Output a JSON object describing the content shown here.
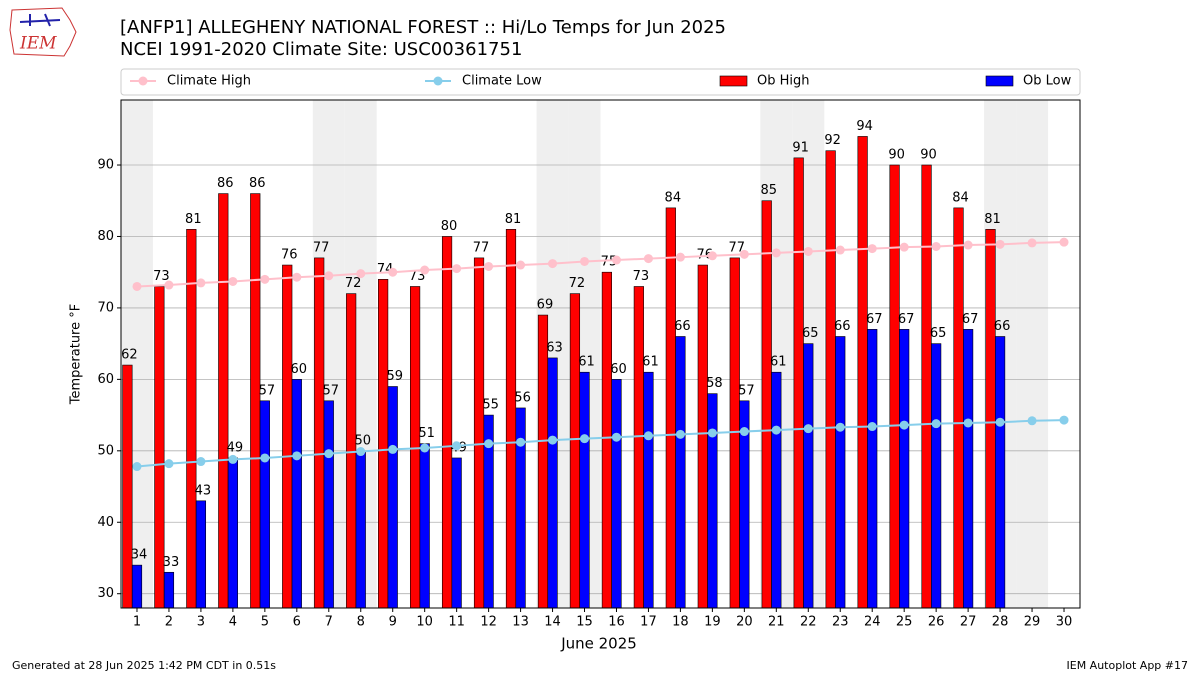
{
  "chart_data": {
    "type": "bar",
    "title": "[ANFP1] ALLEGHENY NATIONAL FOREST :: Hi/Lo Temps for Jun 2025",
    "subtitle": "NCEI 1991-2020 Climate Site: USC00361751",
    "logo_text": "IEM",
    "x_label": "June 2025",
    "y_label": "Temperature $^\\circ$F",
    "y_label_printed": "Temperature °F",
    "footer_left": "Generated at 28 Jun 2025 1:42 PM CDT in 0.51s",
    "footer_right": "IEM Autoplot App #17",
    "x": [
      1,
      2,
      3,
      4,
      5,
      6,
      7,
      8,
      9,
      10,
      11,
      12,
      13,
      14,
      15,
      16,
      17,
      18,
      19,
      20,
      21,
      22,
      23,
      24,
      25,
      26,
      27,
      28,
      29,
      30
    ],
    "xlim": [
      0.5,
      30.5
    ],
    "xticks": [
      1,
      2,
      3,
      4,
      5,
      6,
      7,
      8,
      9,
      10,
      11,
      12,
      13,
      14,
      15,
      16,
      17,
      18,
      19,
      20,
      21,
      22,
      23,
      24,
      25,
      26,
      27,
      28,
      29,
      30
    ],
    "ylim": [
      28,
      99.1
    ],
    "yticks": [
      30,
      40,
      50,
      60,
      70,
      80,
      90
    ],
    "grid": true,
    "shaded_x": [
      1,
      7,
      8,
      14,
      15,
      21,
      22,
      28,
      29
    ],
    "shade_color": "#efefef",
    "series": [
      {
        "name": "Climate High",
        "type": "line",
        "color": "#ffc0cb",
        "values": [
          73.0,
          73.2,
          73.5,
          73.7,
          74.0,
          74.3,
          74.5,
          74.8,
          75.0,
          75.3,
          75.5,
          75.8,
          76.0,
          76.2,
          76.5,
          76.7,
          76.9,
          77.1,
          77.3,
          77.5,
          77.7,
          77.9,
          78.1,
          78.3,
          78.5,
          78.6,
          78.8,
          78.9,
          79.1,
          79.2
        ]
      },
      {
        "name": "Climate Low",
        "type": "line",
        "color": "#87ceeb",
        "values": [
          47.8,
          48.2,
          48.5,
          48.8,
          49.0,
          49.3,
          49.6,
          49.9,
          50.2,
          50.4,
          50.7,
          51.0,
          51.2,
          51.5,
          51.7,
          51.9,
          52.1,
          52.3,
          52.5,
          52.7,
          52.9,
          53.1,
          53.3,
          53.4,
          53.6,
          53.8,
          53.9,
          54.0,
          54.2,
          54.3
        ]
      },
      {
        "name": "Ob High",
        "type": "bar",
        "color": "#ff0000",
        "offset": [
          -0.45,
          -0.15
        ],
        "values": [
          62,
          73,
          81,
          86,
          86,
          76,
          77,
          72,
          74,
          73,
          80,
          77,
          81,
          69,
          72,
          75,
          73,
          84,
          76,
          77,
          85,
          91,
          92,
          94,
          90,
          90,
          84,
          81,
          null,
          null
        ]
      },
      {
        "name": "Ob Low",
        "type": "bar",
        "color": "#0000ff",
        "offset": [
          -0.15,
          0.15
        ],
        "values": [
          34,
          33,
          43,
          49,
          57,
          60,
          57,
          50,
          59,
          51,
          49,
          55,
          56,
          63,
          61,
          60,
          61,
          66,
          58,
          57,
          61,
          65,
          66,
          67,
          67,
          65,
          67,
          66,
          null,
          null
        ]
      }
    ]
  }
}
